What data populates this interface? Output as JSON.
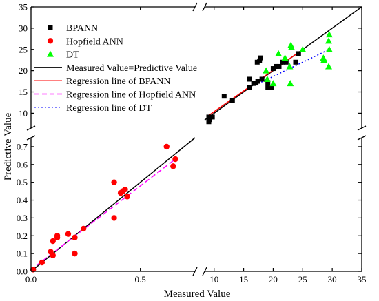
{
  "chart_data": {
    "type": "scatter",
    "xlabel": "Measured Value",
    "ylabel": "Predictive Value",
    "broken_axes": true,
    "x_segments": [
      {
        "range": [
          0.0,
          0.75
        ],
        "ticks": [
          0.0,
          0.5
        ],
        "tick_labels": [
          "0.0",
          "0.5"
        ]
      },
      {
        "range": [
          8.4,
          35
        ],
        "ticks": [
          10,
          15,
          20,
          25,
          30,
          35
        ],
        "tick_labels": [
          "10",
          "15",
          "20",
          "25",
          "30",
          "35"
        ]
      }
    ],
    "y_segments": [
      {
        "range": [
          0.0,
          0.75
        ],
        "ticks": [
          0.0,
          0.1,
          0.2,
          0.3,
          0.4,
          0.5,
          0.6,
          0.7
        ],
        "tick_labels": [
          "0.0",
          "0.1",
          "0.2",
          "0.3",
          "0.4",
          "0.5",
          "0.6",
          "0.7"
        ]
      },
      {
        "range": [
          6.5,
          35
        ],
        "ticks": [
          10,
          15,
          20,
          25,
          30,
          35
        ],
        "tick_labels": [
          "10",
          "15",
          "20",
          "25",
          "30",
          "35"
        ]
      }
    ],
    "grid": false,
    "legend_position": "top-left",
    "series": [
      {
        "name": "BPANN",
        "kind": "scatter",
        "marker": "square",
        "color": "#000000",
        "points": [
          [
            9.1,
            8.0
          ],
          [
            9.2,
            8.5
          ],
          [
            9.1,
            9.1
          ],
          [
            9.7,
            9.1
          ],
          [
            11.7,
            14.0
          ],
          [
            13.1,
            13.0
          ],
          [
            16.0,
            16.0
          ],
          [
            16.0,
            18.0
          ],
          [
            16.7,
            17.0
          ],
          [
            17.1,
            17.1
          ],
          [
            17.4,
            17.5
          ],
          [
            17.3,
            22.0
          ],
          [
            17.7,
            22.3
          ],
          [
            17.8,
            23.0
          ],
          [
            18.1,
            18.0
          ],
          [
            19.1,
            17.2
          ],
          [
            19.1,
            16.0
          ],
          [
            19.7,
            16.0
          ],
          [
            20.0,
            20.5
          ],
          [
            20.5,
            21.0
          ],
          [
            21.0,
            21.0
          ],
          [
            21.6,
            22.0
          ],
          [
            22.2,
            22.0
          ],
          [
            23.8,
            22.0
          ],
          [
            24.3,
            24.0
          ]
        ]
      },
      {
        "name": "Hopfield ANN",
        "kind": "scatter",
        "marker": "circle",
        "color": "#ff0000",
        "points": [
          [
            0.01,
            0.01
          ],
          [
            0.05,
            0.05
          ],
          [
            0.09,
            0.11
          ],
          [
            0.1,
            0.09
          ],
          [
            0.1,
            0.17
          ],
          [
            0.12,
            0.19
          ],
          [
            0.12,
            0.2
          ],
          [
            0.17,
            0.21
          ],
          [
            0.2,
            0.19
          ],
          [
            0.2,
            0.1
          ],
          [
            0.24,
            0.24
          ],
          [
            0.38,
            0.5
          ],
          [
            0.38,
            0.3
          ],
          [
            0.41,
            0.44
          ],
          [
            0.42,
            0.45
          ],
          [
            0.43,
            0.46
          ],
          [
            0.44,
            0.42
          ],
          [
            0.62,
            0.7
          ],
          [
            0.65,
            0.59
          ],
          [
            0.66,
            0.63
          ]
        ]
      },
      {
        "name": "DT",
        "kind": "scatter",
        "marker": "triangle",
        "color": "#00ff00",
        "points": [
          [
            18.8,
            20.0
          ],
          [
            19.0,
            18.0
          ],
          [
            20.0,
            17.0
          ],
          [
            20.9,
            24.0
          ],
          [
            22.0,
            23.0
          ],
          [
            22.8,
            21.0
          ],
          [
            22.9,
            17.0
          ],
          [
            23.0,
            26.0
          ],
          [
            23.1,
            25.5
          ],
          [
            25.0,
            25.0
          ],
          [
            28.5,
            23.0
          ],
          [
            28.6,
            22.5
          ],
          [
            29.4,
            21.0
          ],
          [
            29.4,
            27.0
          ],
          [
            29.5,
            25.0
          ],
          [
            29.5,
            28.5
          ]
        ]
      },
      {
        "name": "Measured Value=Predictive Value",
        "kind": "line",
        "style": "solid",
        "color": "#000000",
        "segments": [
          [
            [
              0.0,
              0.0
            ],
            [
              0.75,
              0.75
            ]
          ],
          [
            [
              8.4,
              8.4
            ],
            [
              35.0,
              35.0
            ]
          ]
        ]
      },
      {
        "name": "Regression line of BPANN",
        "kind": "line",
        "style": "solid",
        "color": "#ff0000",
        "segments": [
          [
            [
              9.0,
              9.4
            ],
            [
              24.5,
              24.5
            ]
          ]
        ]
      },
      {
        "name": "Regression line of Hopfield ANN",
        "kind": "line",
        "style": "dashed",
        "color": "#ff00ff",
        "segments": [
          [
            [
              0.0,
              0.01
            ],
            [
              0.66,
              0.63
            ]
          ]
        ]
      },
      {
        "name": "Regression line of DT",
        "kind": "line",
        "style": "dotted",
        "color": "#0000ff",
        "segments": [
          [
            [
              18.0,
              17.3
            ],
            [
              29.5,
              25.0
            ]
          ]
        ]
      }
    ]
  }
}
